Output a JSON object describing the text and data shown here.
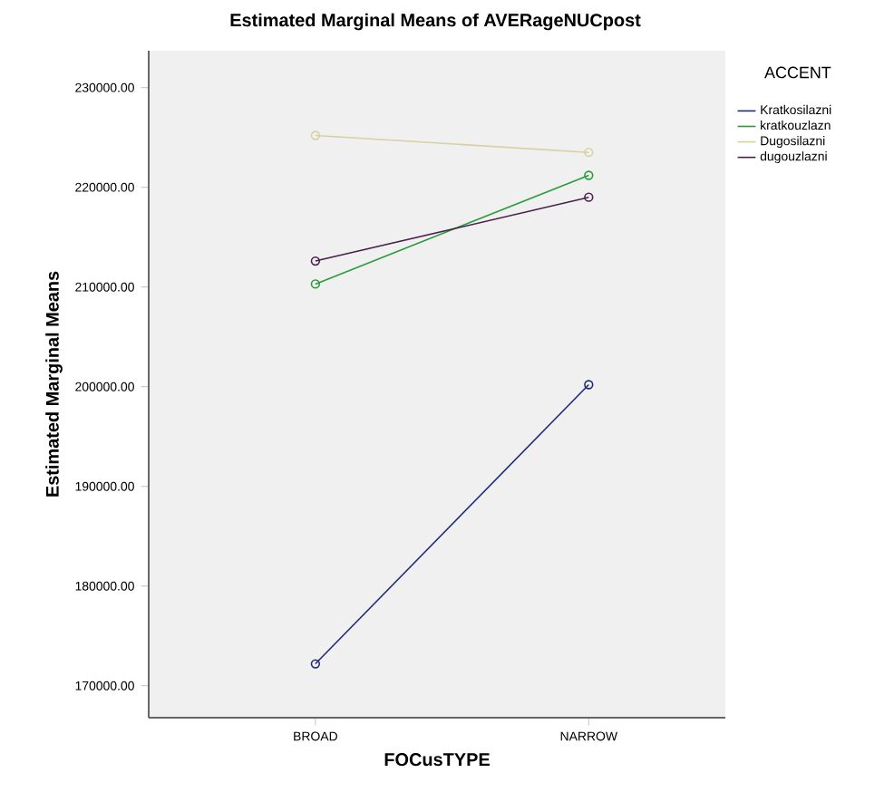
{
  "chart_data": {
    "type": "line",
    "title": "Estimated Marginal Means of AVERageNUCpost",
    "xlabel": "FOCusTYPE",
    "ylabel": "Estimated Marginal Means",
    "legend_title": "ACCENT",
    "categories": [
      "BROAD",
      "NARROW"
    ],
    "series": [
      {
        "name": "Kratkosilazni",
        "color": "#1f2a7a",
        "values": [
          172200,
          200200
        ]
      },
      {
        "name": "kratkouzlazn",
        "color": "#2a9a3a",
        "values": [
          210300,
          221200
        ]
      },
      {
        "name": "Dugosilazni",
        "color": "#d8d0a0",
        "values": [
          225200,
          223500
        ]
      },
      {
        "name": "dugouzlazni",
        "color": "#4a1f4a",
        "values": [
          212600,
          219000
        ]
      }
    ],
    "ylim": [
      166800,
      233700
    ],
    "yticks": [
      {
        "value": 170000,
        "label": "170000.00"
      },
      {
        "value": 180000,
        "label": "180000.00"
      },
      {
        "value": 190000,
        "label": "190000.00"
      },
      {
        "value": 200000,
        "label": "200000.00"
      },
      {
        "value": 210000,
        "label": "210000.00"
      },
      {
        "value": 220000,
        "label": "220000.00"
      },
      {
        "value": 230000,
        "label": "230000.00"
      }
    ],
    "grid": false,
    "legend": "right",
    "marker": "circle",
    "line_style": "solid"
  }
}
